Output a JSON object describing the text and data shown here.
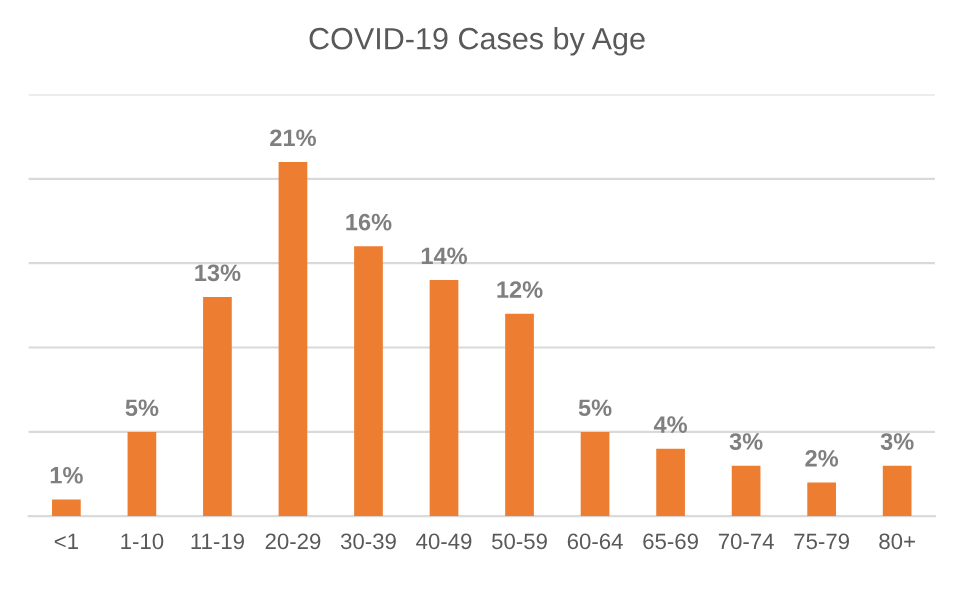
{
  "chart_data": {
    "type": "bar",
    "title": "COVID-19 Cases by Age",
    "categories": [
      "<1",
      "1-10",
      "11-19",
      "20-29",
      "30-39",
      "40-49",
      "50-59",
      "60-64",
      "65-69",
      "70-74",
      "75-79",
      "80+"
    ],
    "values": [
      1,
      5,
      13,
      21,
      16,
      14,
      12,
      5,
      4,
      3,
      2,
      3
    ],
    "value_labels": [
      "1%",
      "5%",
      "13%",
      "21%",
      "16%",
      "14%",
      "12%",
      "5%",
      "4%",
      "3%",
      "2%",
      "3%"
    ],
    "color": "#ed7d31",
    "ylim": [
      0,
      25
    ],
    "yticks": [
      {
        "value": 0,
        "label": null
      },
      {
        "value": 5,
        "label": null
      },
      {
        "value": 10,
        "label": null
      },
      {
        "value": 15,
        "label": null
      },
      {
        "value": 20,
        "label": null
      },
      {
        "value": 25,
        "label": null
      }
    ],
    "grid": "y",
    "tick_labels": "x",
    "legend": false
  }
}
